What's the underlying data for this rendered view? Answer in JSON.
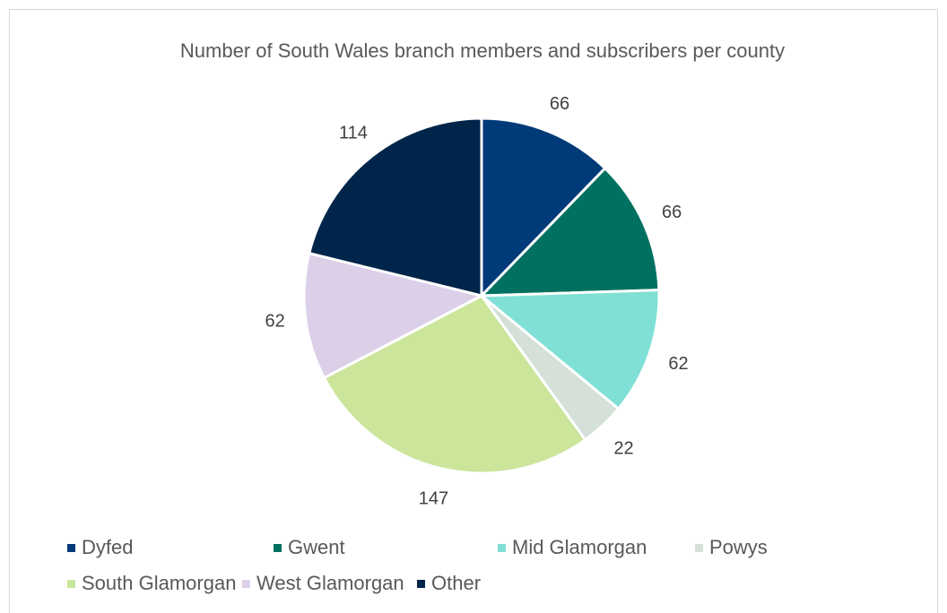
{
  "chart_data": {
    "type": "pie",
    "title": "Number of South Wales branch members and subscribers per county",
    "slices": [
      {
        "label": "Dyfed",
        "value": 66,
        "color": "#003a78"
      },
      {
        "label": "Gwent",
        "value": 66,
        "color": "#007161"
      },
      {
        "label": "Mid Glamorgan",
        "value": 62,
        "color": "#80e0d6"
      },
      {
        "label": "Powys",
        "value": 22,
        "color": "#d4e0d8"
      },
      {
        "label": "South Glamorgan",
        "value": 147,
        "color": "#cbe59b"
      },
      {
        "label": "West Glamorgan",
        "value": 62,
        "color": "#dcd0e8"
      },
      {
        "label": "Other",
        "value": 114,
        "color": "#00254a"
      }
    ],
    "legend_position": "bottom"
  }
}
